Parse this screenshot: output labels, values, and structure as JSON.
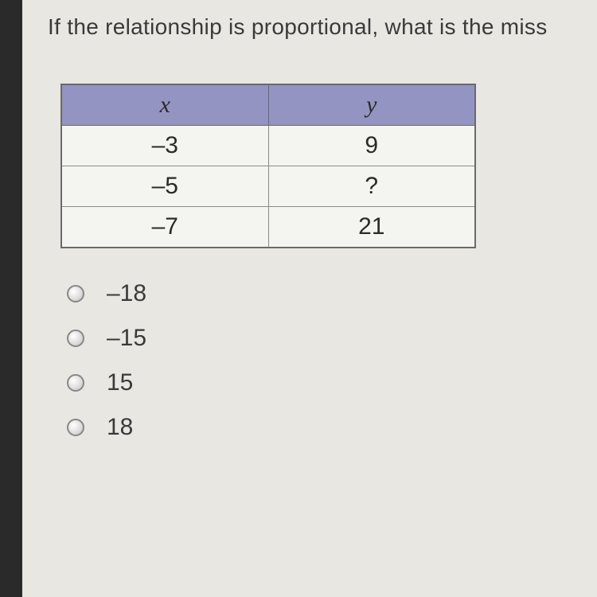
{
  "question": {
    "text": "If the relationship is proportional, what is the miss"
  },
  "table": {
    "columns": [
      "x",
      "y"
    ],
    "rows": [
      [
        "–3",
        "9"
      ],
      [
        "–5",
        "?"
      ],
      [
        "–7",
        "21"
      ]
    ],
    "header_bg_color": "#9494c2",
    "cell_bg_color": "#f4f4f0",
    "border_color": "#6a6a6a"
  },
  "options": [
    {
      "label": "–18"
    },
    {
      "label": "–15"
    },
    {
      "label": "15"
    },
    {
      "label": "18"
    }
  ],
  "colors": {
    "page_bg": "#e8e7e2",
    "left_border": "#2a2a2a",
    "text": "#3a3a3a"
  }
}
